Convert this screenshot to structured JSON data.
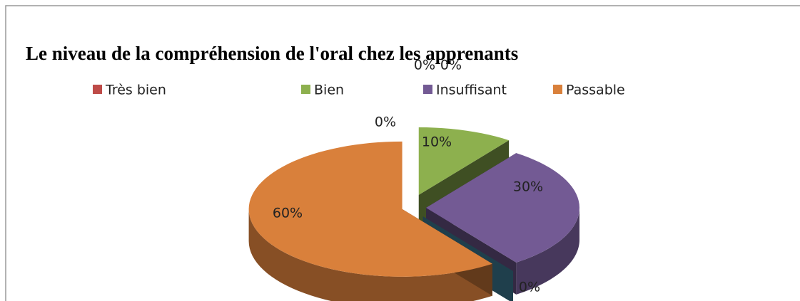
{
  "chart_data": {
    "type": "pie3d",
    "title": "Le niveau de la compréhension de l'oral chez les apprenants",
    "categories": [
      "Très bien",
      "Bien",
      "Insuffisant",
      null,
      "Passable",
      null,
      null
    ],
    "values": [
      0,
      10,
      30,
      0,
      60,
      0,
      0
    ],
    "value_labels": [
      "0%",
      "10%",
      "30%",
      "0%",
      "60%",
      "0%",
      "0%"
    ],
    "colors": [
      "#be4b48",
      "#8db04e",
      "#735a94",
      "#1f3f4c",
      "#d9803b",
      "#3f6fae",
      "#4bacc6"
    ],
    "legend": "top"
  }
}
